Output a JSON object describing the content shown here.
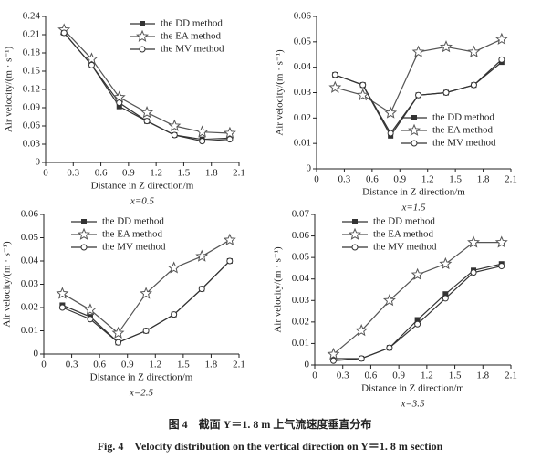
{
  "chart_data": [
    {
      "type": "line",
      "subtitle": "x=0.5",
      "xlabel": "Distance in Z direction/m",
      "ylabel": "Air velocity/(m · s⁻¹)",
      "x": [
        0.2,
        0.5,
        0.8,
        1.1,
        1.4,
        1.7,
        2.0
      ],
      "xlim": [
        0,
        2.1
      ],
      "xticks": [
        0,
        0.3,
        0.6,
        0.9,
        1.2,
        1.5,
        1.8,
        2.1
      ],
      "ylim": [
        0,
        0.24
      ],
      "yticks": [
        0,
        0.03,
        0.06,
        0.09,
        0.12,
        0.15,
        0.18,
        0.21,
        0.24
      ],
      "legend": "upper right",
      "series": [
        {
          "name": "the DD method",
          "color": "#333333",
          "marker": "square",
          "values": [
            0.213,
            0.16,
            0.092,
            0.068,
            0.045,
            0.038,
            0.04
          ]
        },
        {
          "name": "the EA method",
          "color": "#555555",
          "marker": "star",
          "values": [
            0.218,
            0.17,
            0.107,
            0.082,
            0.06,
            0.05,
            0.048
          ]
        },
        {
          "name": "the MV method",
          "color": "#333333",
          "marker": "circle",
          "values": [
            0.213,
            0.16,
            0.098,
            0.068,
            0.045,
            0.035,
            0.038
          ]
        }
      ]
    },
    {
      "type": "line",
      "subtitle": "x=1.5",
      "xlabel": "Distance in Z direction/m",
      "ylabel": "Air velocity/(m · s⁻¹)",
      "x": [
        0.2,
        0.5,
        0.8,
        1.1,
        1.4,
        1.7,
        2.0
      ],
      "xlim": [
        0,
        2.1
      ],
      "xticks": [
        0,
        0.3,
        0.6,
        0.9,
        1.2,
        1.5,
        1.8,
        2.1
      ],
      "ylim": [
        0,
        0.06
      ],
      "yticks": [
        0,
        0.01,
        0.02,
        0.03,
        0.04,
        0.05,
        0.06
      ],
      "legend": "lower right",
      "series": [
        {
          "name": "the DD method",
          "color": "#333333",
          "marker": "square",
          "values": [
            0.037,
            0.033,
            0.013,
            0.029,
            0.03,
            0.033,
            0.042
          ]
        },
        {
          "name": "the EA method",
          "color": "#555555",
          "marker": "star",
          "values": [
            0.032,
            0.029,
            0.022,
            0.046,
            0.048,
            0.046,
            0.051
          ]
        },
        {
          "name": "the MV method",
          "color": "#333333",
          "marker": "circle",
          "values": [
            0.037,
            0.033,
            0.014,
            0.029,
            0.03,
            0.033,
            0.043
          ]
        }
      ]
    },
    {
      "type": "line",
      "subtitle": "x=2.5",
      "xlabel": "Distance in Z direction/m",
      "ylabel": "Air velocity/(m · s⁻¹)",
      "x": [
        0.2,
        0.5,
        0.8,
        1.1,
        1.4,
        1.7,
        2.0
      ],
      "xlim": [
        0,
        2.1
      ],
      "xticks": [
        0,
        0.3,
        0.6,
        0.9,
        1.2,
        1.5,
        1.8,
        2.1
      ],
      "ylim": [
        0,
        0.06
      ],
      "yticks": [
        0,
        0.01,
        0.02,
        0.03,
        0.04,
        0.05,
        0.06
      ],
      "legend": "upper center",
      "series": [
        {
          "name": "the DD method",
          "color": "#333333",
          "marker": "square",
          "values": [
            0.021,
            0.016,
            0.005,
            0.01,
            0.017,
            0.028,
            0.04
          ]
        },
        {
          "name": "the EA method",
          "color": "#555555",
          "marker": "star",
          "values": [
            0.026,
            0.019,
            0.009,
            0.026,
            0.037,
            0.042,
            0.049
          ]
        },
        {
          "name": "the MV method",
          "color": "#333333",
          "marker": "circle",
          "values": [
            0.02,
            0.015,
            0.005,
            0.01,
            0.017,
            0.028,
            0.04
          ]
        }
      ]
    },
    {
      "type": "line",
      "subtitle": "x=3.5",
      "xlabel": "Distance in Z direction/m",
      "ylabel": "Air velocity/(m · s⁻¹)",
      "x": [
        0.2,
        0.5,
        0.8,
        1.1,
        1.4,
        1.7,
        2.0
      ],
      "xlim": [
        0,
        2.1
      ],
      "xticks": [
        0,
        0.3,
        0.6,
        0.9,
        1.2,
        1.5,
        1.8,
        2.1
      ],
      "ylim": [
        0,
        0.07
      ],
      "yticks": [
        0,
        0.01,
        0.02,
        0.03,
        0.04,
        0.05,
        0.06,
        0.07
      ],
      "legend": "upper center",
      "series": [
        {
          "name": "the DD method",
          "color": "#333333",
          "marker": "square",
          "values": [
            0.003,
            0.003,
            0.008,
            0.021,
            0.033,
            0.044,
            0.047
          ]
        },
        {
          "name": "the EA method",
          "color": "#555555",
          "marker": "star",
          "values": [
            0.005,
            0.016,
            0.03,
            0.042,
            0.047,
            0.057,
            0.057
          ]
        },
        {
          "name": "the MV method",
          "color": "#333333",
          "marker": "circle",
          "values": [
            0.002,
            0.003,
            0.008,
            0.019,
            0.031,
            0.043,
            0.046
          ]
        }
      ]
    }
  ],
  "caption": {
    "chinese": "图 4　截面 Y＝1. 8 m 上气流速度垂直分布",
    "english": "Fig. 4　Velocity distribution on the vertical direction on Y＝1. 8 m section"
  }
}
